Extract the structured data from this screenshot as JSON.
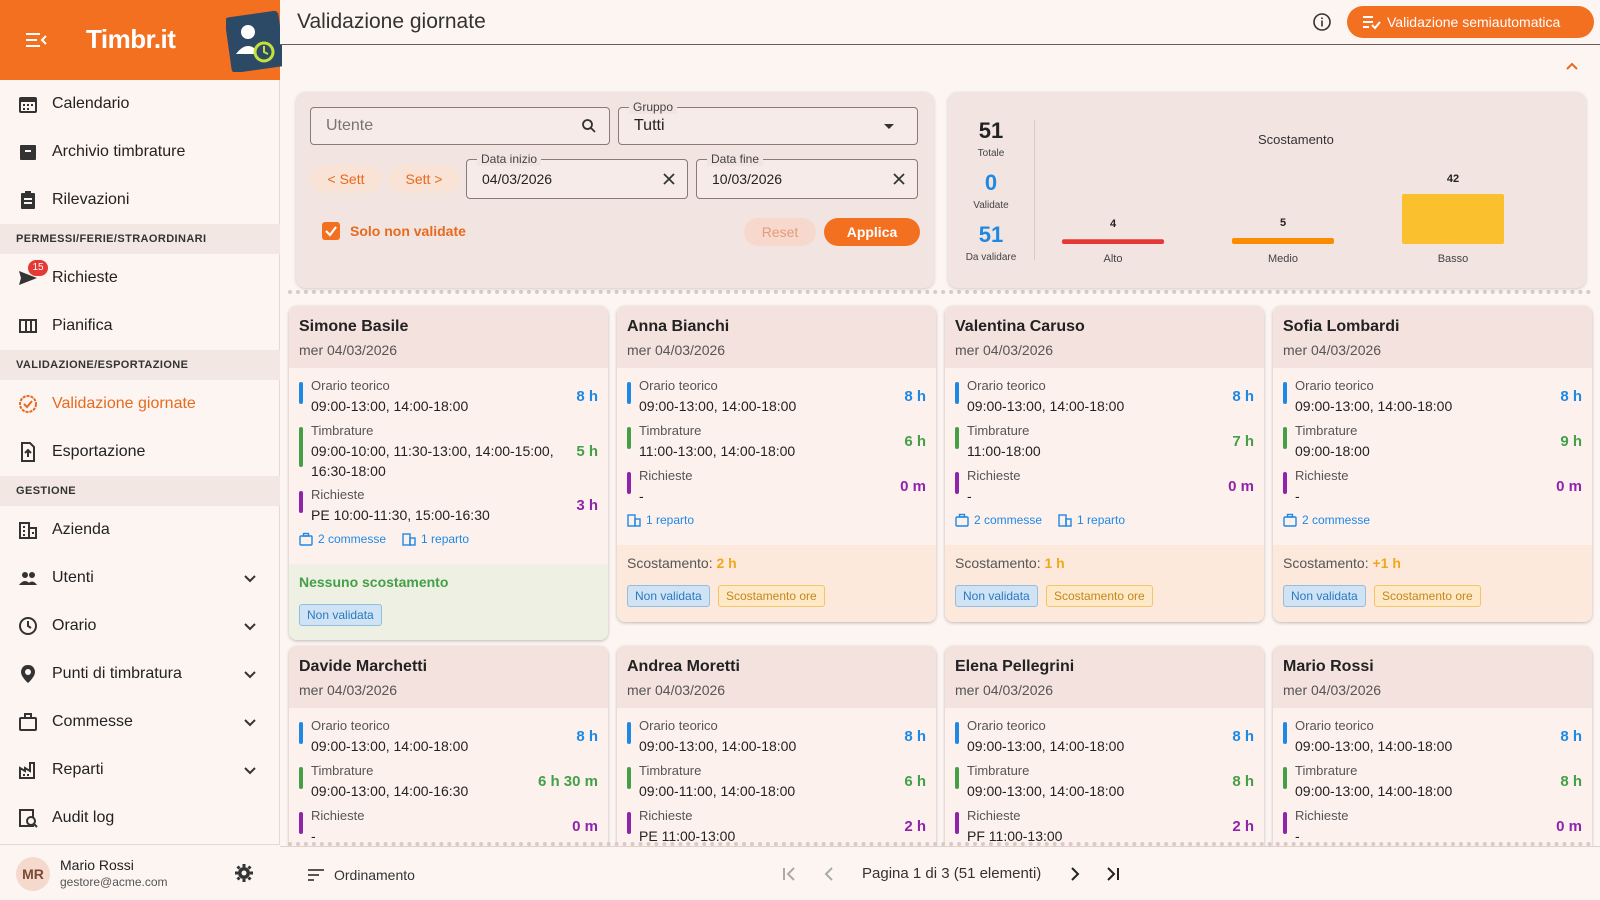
{
  "brand": {
    "name": "Timbr.it"
  },
  "sidebar": {
    "items_top": [
      {
        "label": "Calendario",
        "icon": "calendar-icon"
      },
      {
        "label": "Archivio timbrature",
        "icon": "archive-icon"
      },
      {
        "label": "Rilevazioni",
        "icon": "clipboard-icon"
      }
    ],
    "section_permessi": "PERMESSI/FERIE/STRAORDINARI",
    "richieste": {
      "label": "Richieste",
      "badge": "15",
      "icon": "send-icon"
    },
    "pianifica": {
      "label": "Pianifica",
      "icon": "columns-icon"
    },
    "section_validazione": "VALIDAZIONE/ESPORTAZIONE",
    "validazione": {
      "label": "Validazione giornate",
      "icon": "check-badge-icon"
    },
    "esportazione": {
      "label": "Esportazione",
      "icon": "file-export-icon"
    },
    "section_gestione": "GESTIONE",
    "gestione": [
      {
        "label": "Azienda",
        "icon": "building-icon",
        "expandable": false
      },
      {
        "label": "Utenti",
        "icon": "people-icon",
        "expandable": true
      },
      {
        "label": "Orario",
        "icon": "clock-icon",
        "expandable": true
      },
      {
        "label": "Punti di timbratura",
        "icon": "location-pin-icon",
        "expandable": true
      },
      {
        "label": "Commesse",
        "icon": "briefcase-icon",
        "expandable": true
      },
      {
        "label": "Reparti",
        "icon": "factory-icon",
        "expandable": true
      },
      {
        "label": "Audit log",
        "icon": "audit-icon",
        "expandable": false
      }
    ],
    "user": {
      "initials": "MR",
      "name": "Mario Rossi",
      "email": "gestore@acme.com"
    }
  },
  "header": {
    "title": "Validazione giornate",
    "semi_button": "Validazione semiautomatica"
  },
  "filters": {
    "user_placeholder": "Utente",
    "group_label": "Gruppo",
    "group_value": "Tutti",
    "prev_week": "< Sett",
    "next_week": "Sett >",
    "start_label": "Data inizio",
    "start_value": "04/03/2026",
    "end_label": "Data fine",
    "end_value": "10/03/2026",
    "only_unvalidated": "Solo non validate",
    "reset": "Reset",
    "apply": "Applica"
  },
  "stats": {
    "total": "51",
    "total_label": "Totale",
    "validated": "0",
    "validated_label": "Validate",
    "to_validate": "51",
    "to_validate_label": "Da validare"
  },
  "chart_data": {
    "type": "bar",
    "title": "Scostamento",
    "categories": [
      "Alto",
      "Medio",
      "Basso"
    ],
    "values": [
      4,
      5,
      42
    ],
    "colors": [
      "#e53935",
      "#fb8c00",
      "#fbc02d"
    ],
    "ylim": [
      0,
      42
    ]
  },
  "cards": [
    {
      "name": "Simone Basile",
      "date": "mer 04/03/2026",
      "orario_label": "Orario teorico",
      "orario": "09:00-13:00, 14:00-18:00",
      "orario_h": "8 h",
      "timbrature_label": "Timbrature",
      "timbrature": "09:00-10:00, 11:30-13:00, 14:00-15:00, 16:30-18:00",
      "timbrature_h": "5 h",
      "richieste_label": "Richieste",
      "richieste": "PE 10:00-11:30, 15:00-16:30",
      "richieste_h": "3 h",
      "commesse": "2 commesse",
      "reparto": "1 reparto",
      "status": "Nessuno scostamento",
      "tag1": "Non validata"
    },
    {
      "name": "Anna Bianchi",
      "date": "mer 04/03/2026",
      "orario_label": "Orario teorico",
      "orario": "09:00-13:00, 14:00-18:00",
      "orario_h": "8 h",
      "timbrature_label": "Timbrature",
      "timbrature": "11:00-13:00, 14:00-18:00",
      "timbrature_h": "6 h",
      "richieste_label": "Richieste",
      "richieste": "-",
      "richieste_h": "0 m",
      "reparto": "1 reparto",
      "scost_label": "Scostamento:",
      "scost_value": "2 h",
      "tag1": "Non validata",
      "tag2": "Scostamento ore"
    },
    {
      "name": "Valentina Caruso",
      "date": "mer 04/03/2026",
      "orario_label": "Orario teorico",
      "orario": "09:00-13:00, 14:00-18:00",
      "orario_h": "8 h",
      "timbrature_label": "Timbrature",
      "timbrature": "11:00-18:00",
      "timbrature_h": "7 h",
      "richieste_label": "Richieste",
      "richieste": "-",
      "richieste_h": "0 m",
      "commesse": "2 commesse",
      "reparto": "1 reparto",
      "scost_label": "Scostamento:",
      "scost_value": "1 h",
      "tag1": "Non validata",
      "tag2": "Scostamento ore"
    },
    {
      "name": "Sofia Lombardi",
      "date": "mer 04/03/2026",
      "orario_label": "Orario teorico",
      "orario": "09:00-13:00, 14:00-18:00",
      "orario_h": "8 h",
      "timbrature_label": "Timbrature",
      "timbrature": "09:00-18:00",
      "timbrature_h": "9 h",
      "richieste_label": "Richieste",
      "richieste": "-",
      "richieste_h": "0 m",
      "commesse": "2 commesse",
      "scost_label": "Scostamento:",
      "scost_value": "+1 h",
      "tag1": "Non validata",
      "tag2": "Scostamento ore"
    },
    {
      "name": "Davide Marchetti",
      "date": "mer 04/03/2026",
      "orario_label": "Orario teorico",
      "orario": "09:00-13:00, 14:00-18:00",
      "orario_h": "8 h",
      "timbrature_label": "Timbrature",
      "timbrature": "09:00-13:00, 14:00-16:30",
      "timbrature_h": "6 h 30 m",
      "richieste_label": "Richieste",
      "richieste": "-",
      "richieste_h": "0 m"
    },
    {
      "name": "Andrea Moretti",
      "date": "mer 04/03/2026",
      "orario_label": "Orario teorico",
      "orario": "09:00-13:00, 14:00-18:00",
      "orario_h": "8 h",
      "timbrature_label": "Timbrature",
      "timbrature": "09:00-11:00, 14:00-18:00",
      "timbrature_h": "6 h",
      "richieste_label": "Richieste",
      "richieste": "PE 11:00-13:00",
      "richieste_h": "2 h"
    },
    {
      "name": "Elena Pellegrini",
      "date": "mer 04/03/2026",
      "orario_label": "Orario teorico",
      "orario": "09:00-13:00, 14:00-18:00",
      "orario_h": "8 h",
      "timbrature_label": "Timbrature",
      "timbrature": "09:00-13:00, 14:00-18:00",
      "timbrature_h": "8 h",
      "richieste_label": "Richieste",
      "richieste": "PF 11:00-13:00",
      "richieste_h": "2 h"
    },
    {
      "name": "Mario Rossi",
      "date": "mer 04/03/2026",
      "orario_label": "Orario teorico",
      "orario": "09:00-13:00, 14:00-18:00",
      "orario_h": "8 h",
      "timbrature_label": "Timbrature",
      "timbrature": "09:00-13:00, 14:00-18:00",
      "timbrature_h": "8 h",
      "richieste_label": "Richieste",
      "richieste": "-",
      "richieste_h": "0 m"
    }
  ],
  "bottom": {
    "sort": "Ordinamento",
    "page_info": "Pagina 1 di 3 (51 elementi)"
  }
}
